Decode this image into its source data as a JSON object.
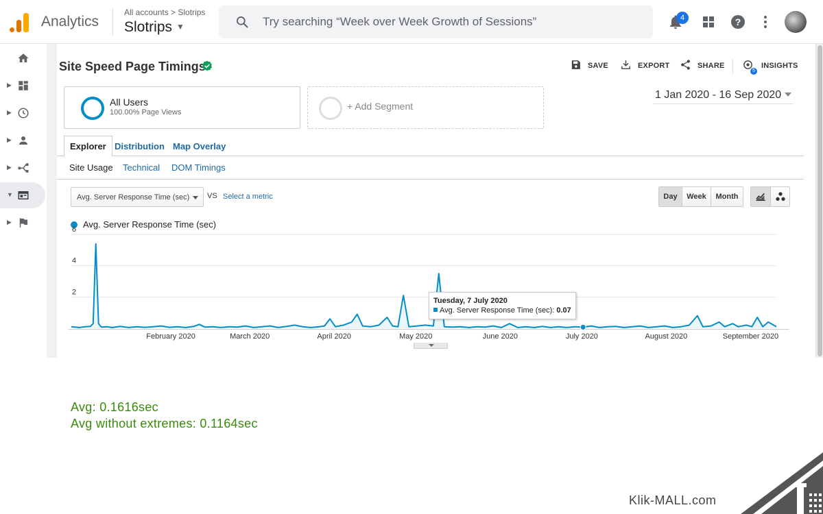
{
  "header": {
    "app_name": "Analytics",
    "breadcrumb": "All accounts > Slotrips",
    "property": "Slotrips",
    "search_placeholder": "Try searching “Week over Week Growth of Sessions”",
    "notification_count": "4"
  },
  "leftnav": {
    "items": [
      {
        "icon": "home-icon"
      },
      {
        "icon": "customization-icon"
      },
      {
        "icon": "realtime-icon"
      },
      {
        "icon": "audience-icon"
      },
      {
        "icon": "acquisition-icon"
      },
      {
        "icon": "behavior-icon",
        "active": true
      },
      {
        "icon": "conversions-icon"
      }
    ]
  },
  "report": {
    "title": "Site Speed Page Timings",
    "actions": {
      "save": "SAVE",
      "export": "EXPORT",
      "share": "SHARE",
      "insights": "INSIGHTS",
      "insights_count": "5"
    },
    "segments": {
      "segment1_name": "All Users",
      "segment1_sub": "100.00% Page Views",
      "add_segment": "+ Add Segment"
    },
    "date_range": "1 Jan 2020 - 16 Sep 2020",
    "tabs": [
      "Explorer",
      "Distribution",
      "Map Overlay"
    ],
    "subtabs": [
      "Site Usage",
      "Technical",
      "DOM Timings"
    ],
    "metric_select": "Avg. Server Response Time (sec)",
    "vs": "VS",
    "select_metric": "Select a metric",
    "granularity": [
      "Day",
      "Week",
      "Month"
    ],
    "legend": "Avg. Server Response Time (sec)",
    "tooltip": {
      "date": "Tuesday, 7 July 2020",
      "label": "Avg. Server Response Time (sec): ",
      "value": "0.07"
    }
  },
  "stats": {
    "avg": "Avg: 0.1616sec",
    "avg_without_extremes": "Avg without extremes: 0.1164sec"
  },
  "watermark": "Klik-MALL.com",
  "colors": {
    "series": "#058dc7",
    "stat_text": "#3a8a0a",
    "accent": "#1a73e8"
  },
  "chart_data": {
    "type": "line",
    "x_start": "2020-01-01",
    "x_end": "2020-09-16",
    "ylim": [
      0,
      6
    ],
    "yticks": [
      2,
      4,
      6
    ],
    "xtick_labels": [
      "February 2020",
      "March 2020",
      "April 2020",
      "May 2020",
      "June 2020",
      "July 2020",
      "August 2020",
      "September 2020"
    ],
    "xtick_dates": [
      "2020-02-01",
      "2020-03-01",
      "2020-04-01",
      "2020-05-01",
      "2020-06-01",
      "2020-07-01",
      "2020-08-01",
      "2020-09-01"
    ],
    "series": [
      {
        "name": "Avg. Server Response Time (sec)",
        "points": [
          [
            "2020-01-01",
            0.1
          ],
          [
            "2020-01-04",
            0.05
          ],
          [
            "2020-01-06",
            0.1
          ],
          [
            "2020-01-08",
            0.12
          ],
          [
            "2020-01-09",
            0.3
          ],
          [
            "2020-01-10",
            5.4
          ],
          [
            "2020-01-11",
            0.3
          ],
          [
            "2020-01-12",
            0.08
          ],
          [
            "2020-01-14",
            0.1
          ],
          [
            "2020-01-16",
            0.05
          ],
          [
            "2020-01-19",
            0.12
          ],
          [
            "2020-01-22",
            0.05
          ],
          [
            "2020-01-25",
            0.1
          ],
          [
            "2020-01-28",
            0.06
          ],
          [
            "2020-01-31",
            0.1
          ],
          [
            "2020-02-03",
            0.15
          ],
          [
            "2020-02-06",
            0.06
          ],
          [
            "2020-02-09",
            0.1
          ],
          [
            "2020-02-12",
            0.05
          ],
          [
            "2020-02-15",
            0.12
          ],
          [
            "2020-02-17",
            0.25
          ],
          [
            "2020-02-19",
            0.08
          ],
          [
            "2020-02-22",
            0.1
          ],
          [
            "2020-02-25",
            0.05
          ],
          [
            "2020-02-28",
            0.1
          ],
          [
            "2020-03-02",
            0.08
          ],
          [
            "2020-03-05",
            0.15
          ],
          [
            "2020-03-08",
            0.05
          ],
          [
            "2020-03-11",
            0.1
          ],
          [
            "2020-03-14",
            0.15
          ],
          [
            "2020-03-17",
            0.05
          ],
          [
            "2020-03-20",
            0.12
          ],
          [
            "2020-03-23",
            0.2
          ],
          [
            "2020-03-26",
            0.1
          ],
          [
            "2020-03-29",
            0.05
          ],
          [
            "2020-04-01",
            0.1
          ],
          [
            "2020-04-03",
            0.15
          ],
          [
            "2020-04-05",
            0.6
          ],
          [
            "2020-04-07",
            0.1
          ],
          [
            "2020-04-10",
            0.2
          ],
          [
            "2020-04-13",
            0.4
          ],
          [
            "2020-04-15",
            0.9
          ],
          [
            "2020-04-17",
            0.15
          ],
          [
            "2020-04-20",
            0.1
          ],
          [
            "2020-04-23",
            0.2
          ],
          [
            "2020-04-26",
            0.7
          ],
          [
            "2020-04-28",
            0.15
          ],
          [
            "2020-04-30",
            0.1
          ],
          [
            "2020-05-02",
            2.1
          ],
          [
            "2020-05-04",
            0.1
          ],
          [
            "2020-05-07",
            0.15
          ],
          [
            "2020-05-10",
            0.2
          ],
          [
            "2020-05-13",
            0.15
          ],
          [
            "2020-05-15",
            3.5
          ],
          [
            "2020-05-17",
            0.1
          ],
          [
            "2020-05-20",
            0.08
          ],
          [
            "2020-05-23",
            0.1
          ],
          [
            "2020-05-26",
            0.05
          ],
          [
            "2020-05-29",
            0.1
          ],
          [
            "2020-06-01",
            0.08
          ],
          [
            "2020-06-04",
            0.15
          ],
          [
            "2020-06-07",
            0.05
          ],
          [
            "2020-06-10",
            0.3
          ],
          [
            "2020-06-13",
            0.05
          ],
          [
            "2020-06-16",
            0.1
          ],
          [
            "2020-06-19",
            0.05
          ],
          [
            "2020-06-22",
            0.12
          ],
          [
            "2020-06-25",
            0.05
          ],
          [
            "2020-06-28",
            0.1
          ],
          [
            "2020-07-01",
            0.05
          ],
          [
            "2020-07-04",
            0.1
          ],
          [
            "2020-07-07",
            0.07
          ],
          [
            "2020-07-10",
            0.15
          ],
          [
            "2020-07-13",
            0.05
          ],
          [
            "2020-07-16",
            0.1
          ],
          [
            "2020-07-19",
            0.12
          ],
          [
            "2020-07-22",
            0.05
          ],
          [
            "2020-07-25",
            0.1
          ],
          [
            "2020-07-28",
            0.15
          ],
          [
            "2020-07-31",
            0.05
          ],
          [
            "2020-08-03",
            0.1
          ],
          [
            "2020-08-06",
            0.15
          ],
          [
            "2020-08-09",
            0.05
          ],
          [
            "2020-08-12",
            0.1
          ],
          [
            "2020-08-15",
            0.2
          ],
          [
            "2020-08-18",
            0.8
          ],
          [
            "2020-08-20",
            0.1
          ],
          [
            "2020-08-23",
            0.15
          ],
          [
            "2020-08-26",
            0.4
          ],
          [
            "2020-08-28",
            0.1
          ],
          [
            "2020-08-31",
            0.3
          ],
          [
            "2020-09-02",
            0.1
          ],
          [
            "2020-09-05",
            0.2
          ],
          [
            "2020-09-07",
            0.1
          ],
          [
            "2020-09-09",
            0.7
          ],
          [
            "2020-09-11",
            0.1
          ],
          [
            "2020-09-13",
            0.4
          ],
          [
            "2020-09-15",
            0.2
          ],
          [
            "2020-09-16",
            0.1
          ]
        ]
      }
    ]
  }
}
